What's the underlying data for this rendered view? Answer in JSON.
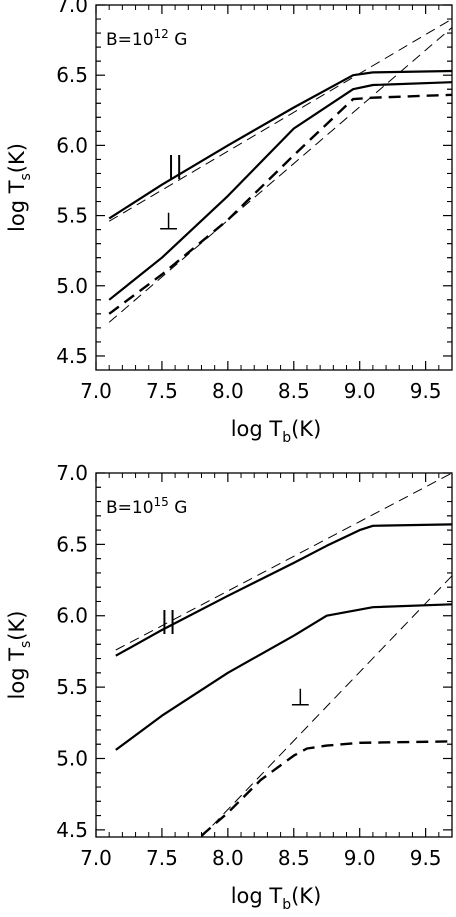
{
  "chart_data": [
    {
      "type": "line",
      "annotation": {
        "prefix": "B=10",
        "exponent": "12",
        "unit": " G"
      },
      "xlabel": {
        "main": "log T",
        "sub": "b",
        "unit": "(K)"
      },
      "ylabel": {
        "main": "log T",
        "sub": "s",
        "unit": "(K)"
      },
      "xlim": [
        7.0,
        9.7
      ],
      "ylim": [
        4.4,
        7.0
      ],
      "xticks": [
        "7.0",
        "7.5",
        "8.0",
        "8.5",
        "9.0",
        "9.5"
      ],
      "yticks": [
        "4.5",
        "5.0",
        "5.5",
        "6.0",
        "6.5",
        "7.0"
      ],
      "grid": false,
      "series": [
        {
          "style": "solid",
          "width": 2.2,
          "points": [
            [
              7.1,
              5.48
            ],
            [
              7.5,
              5.72
            ],
            [
              8.0,
              6.0
            ],
            [
              8.5,
              6.27
            ],
            [
              8.95,
              6.5
            ],
            [
              9.1,
              6.52
            ],
            [
              9.7,
              6.53
            ]
          ]
        },
        {
          "style": "solid",
          "width": 2.2,
          "points": [
            [
              7.1,
              4.9
            ],
            [
              7.5,
              5.2
            ],
            [
              8.0,
              5.64
            ],
            [
              8.5,
              6.12
            ],
            [
              8.95,
              6.4
            ],
            [
              9.1,
              6.43
            ],
            [
              9.7,
              6.45
            ]
          ]
        },
        {
          "style": "dashed",
          "width": 2.4,
          "points": [
            [
              7.1,
              4.8
            ],
            [
              7.5,
              5.08
            ],
            [
              8.0,
              5.47
            ],
            [
              8.5,
              5.93
            ],
            [
              8.95,
              6.33
            ],
            [
              9.1,
              6.34
            ],
            [
              9.7,
              6.36
            ]
          ]
        },
        {
          "style": "thin-dashed",
          "width": 1.0,
          "points": [
            [
              7.1,
              5.46
            ],
            [
              9.7,
              6.9
            ]
          ]
        },
        {
          "style": "thin-dashed",
          "width": 1.0,
          "points": [
            [
              7.1,
              4.74
            ],
            [
              9.7,
              6.84
            ]
          ]
        }
      ],
      "labels": [
        {
          "text": "||",
          "x": 7.6,
          "y": 5.8
        },
        {
          "text": "⊥",
          "x": 7.55,
          "y": 5.4
        }
      ]
    },
    {
      "type": "line",
      "annotation": {
        "prefix": "B=10",
        "exponent": "15",
        "unit": " G"
      },
      "xlabel": {
        "main": "log T",
        "sub": "b",
        "unit": "(K)"
      },
      "ylabel": {
        "main": "log T",
        "sub": "s",
        "unit": "(K)"
      },
      "xlim": [
        7.0,
        9.7
      ],
      "ylim": [
        4.45,
        7.0
      ],
      "xticks": [
        "7.0",
        "7.5",
        "8.0",
        "8.5",
        "9.0",
        "9.5"
      ],
      "yticks": [
        "4.5",
        "5.0",
        "5.5",
        "6.0",
        "6.5",
        "7.0"
      ],
      "grid": false,
      "series": [
        {
          "style": "solid",
          "width": 2.2,
          "points": [
            [
              7.15,
              5.72
            ],
            [
              7.5,
              5.9
            ],
            [
              8.0,
              6.14
            ],
            [
              8.5,
              6.37
            ],
            [
              8.75,
              6.49
            ],
            [
              9.0,
              6.6
            ],
            [
              9.1,
              6.63
            ],
            [
              9.7,
              6.64
            ]
          ]
        },
        {
          "style": "solid",
          "width": 2.2,
          "points": [
            [
              7.15,
              5.06
            ],
            [
              7.5,
              5.3
            ],
            [
              8.0,
              5.6
            ],
            [
              8.5,
              5.86
            ],
            [
              8.75,
              6.0
            ],
            [
              9.1,
              6.06
            ],
            [
              9.7,
              6.08
            ]
          ]
        },
        {
          "style": "dashed",
          "width": 2.4,
          "points": [
            [
              7.8,
              4.46
            ],
            [
              8.0,
              4.62
            ],
            [
              8.25,
              4.85
            ],
            [
              8.5,
              5.02
            ],
            [
              8.6,
              5.07
            ],
            [
              8.75,
              5.09
            ],
            [
              9.0,
              5.11
            ],
            [
              9.7,
              5.12
            ]
          ]
        },
        {
          "style": "thin-dashed",
          "width": 1.0,
          "points": [
            [
              7.15,
              5.76
            ],
            [
              9.7,
              7.0
            ]
          ]
        },
        {
          "style": "thin-dashed",
          "width": 1.0,
          "points": [
            [
              7.8,
              4.45
            ],
            [
              9.7,
              6.28
            ]
          ]
        }
      ],
      "labels": [
        {
          "text": "||",
          "x": 7.55,
          "y": 5.91
        },
        {
          "text": "⊥",
          "x": 8.55,
          "y": 5.37
        }
      ]
    }
  ]
}
